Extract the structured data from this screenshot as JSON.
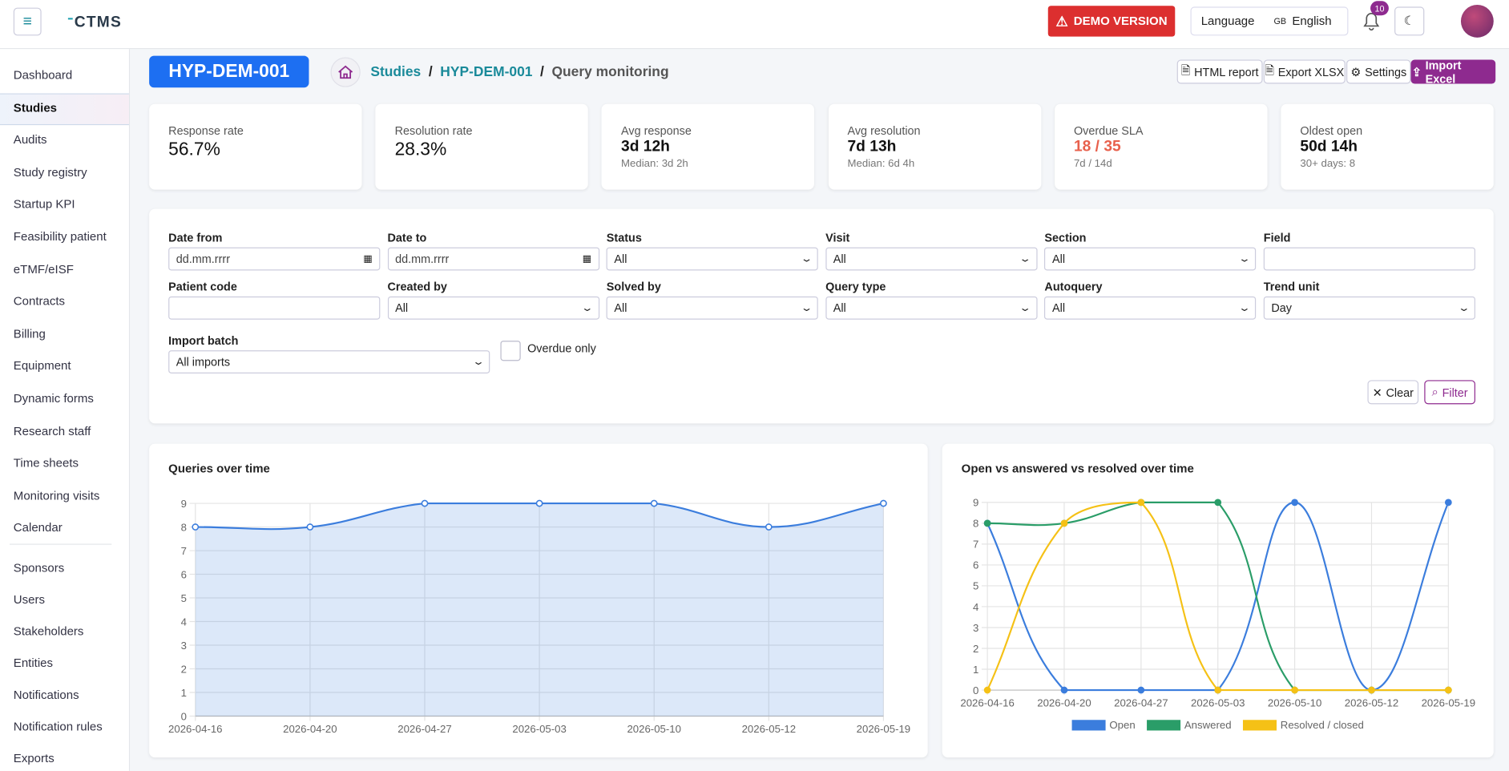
{
  "header": {
    "logo": "CTMS",
    "demo": "DEMO VERSION",
    "language_label": "Language",
    "language_flag": "GB",
    "language": "English",
    "notifications": 10
  },
  "sidebar": {
    "items": [
      "Dashboard",
      "Studies",
      "Audits",
      "Study registry",
      "Startup KPI",
      "Feasibility patient",
      "eTMF/eISF",
      "Contracts",
      "Billing",
      "Equipment",
      "Dynamic forms",
      "Research staff",
      "Time sheets",
      "Monitoring visits",
      "Calendar"
    ],
    "secondary": [
      "Sponsors",
      "Users",
      "Stakeholders",
      "Entities",
      "Notifications",
      "Notification rules",
      "Exports"
    ],
    "active": 1
  },
  "breadcrumb": {
    "study": "HYP-DEM-001",
    "items": [
      "Studies",
      "HYP-DEM-001",
      "Query monitoring"
    ]
  },
  "actions": [
    "HTML report",
    "Export XLSX",
    "Settings",
    "Import Excel"
  ],
  "kpis": [
    {
      "label": "Response rate",
      "value": "56.7%"
    },
    {
      "label": "Resolution rate",
      "value": "28.3%"
    },
    {
      "label": "Avg response",
      "value": "3d 12h",
      "sub": "Median: 3d 2h"
    },
    {
      "label": "Avg resolution",
      "value": "7d 13h",
      "sub": "Median: 6d 4h"
    },
    {
      "label": "Overdue SLA",
      "value": "18 / 35",
      "sub": "7d / 14d",
      "alert": true
    },
    {
      "label": "Oldest open",
      "value": "50d 14h",
      "sub": "30+ days: 8"
    }
  ],
  "filters": [
    {
      "label": "Date from",
      "placeholder": "dd.mm.rrrr"
    },
    {
      "label": "Date to",
      "placeholder": "dd.mm.rrrr"
    },
    {
      "label": "Status",
      "value": "All"
    },
    {
      "label": "Visit",
      "value": "All"
    },
    {
      "label": "Section",
      "value": "All"
    },
    {
      "label": "Field"
    },
    {
      "label": "Patient code"
    },
    {
      "label": "Created by",
      "value": "All"
    },
    {
      "label": "Solved by",
      "value": "All"
    },
    {
      "label": "Query type",
      "value": "All"
    },
    {
      "label": "Autoquery",
      "value": "All"
    },
    {
      "label": "Trend unit",
      "value": "Day"
    },
    {
      "label": "Import batch",
      "value": "All imports"
    }
  ],
  "overdue_only": "Overdue only",
  "filter_buttons": [
    "Clear",
    "Filter"
  ],
  "chart_data": [
    {
      "type": "line",
      "title": "Queries over time",
      "categories": [
        "2026-04-16",
        "2026-04-20",
        "2026-04-27",
        "2026-05-03",
        "2026-05-10",
        "2026-05-12",
        "2026-05-19"
      ],
      "values": [
        8,
        8,
        9,
        9,
        9,
        8,
        9
      ],
      "color": "#3b7ddd",
      "fill": true,
      "ylim": [
        0,
        9
      ],
      "yticks": [
        0,
        1,
        2,
        3,
        4,
        5,
        6,
        7,
        8,
        9
      ],
      "grid": true
    },
    {
      "type": "line",
      "title": "Open vs answered vs resolved over time",
      "categories": [
        "2026-04-16",
        "2026-04-20",
        "2026-04-27",
        "2026-05-03",
        "2026-05-10",
        "2026-05-12",
        "2026-05-19"
      ],
      "series": [
        {
          "name": "Open",
          "color": "#3b7ddd",
          "values": [
            8,
            0,
            0,
            0,
            9,
            0,
            9
          ]
        },
        {
          "name": "Answered",
          "color": "#2a9d68",
          "values": [
            8,
            8,
            9,
            9,
            0,
            0,
            0
          ]
        },
        {
          "name": "Resolved / closed",
          "color": "#f5c116",
          "values": [
            0,
            8,
            9,
            0,
            0,
            0,
            0
          ]
        }
      ],
      "ylim": [
        0,
        9
      ],
      "yticks": [
        0,
        1,
        2,
        3,
        4,
        5,
        6,
        7,
        8,
        9
      ],
      "grid": true,
      "legend": "bottom"
    }
  ]
}
